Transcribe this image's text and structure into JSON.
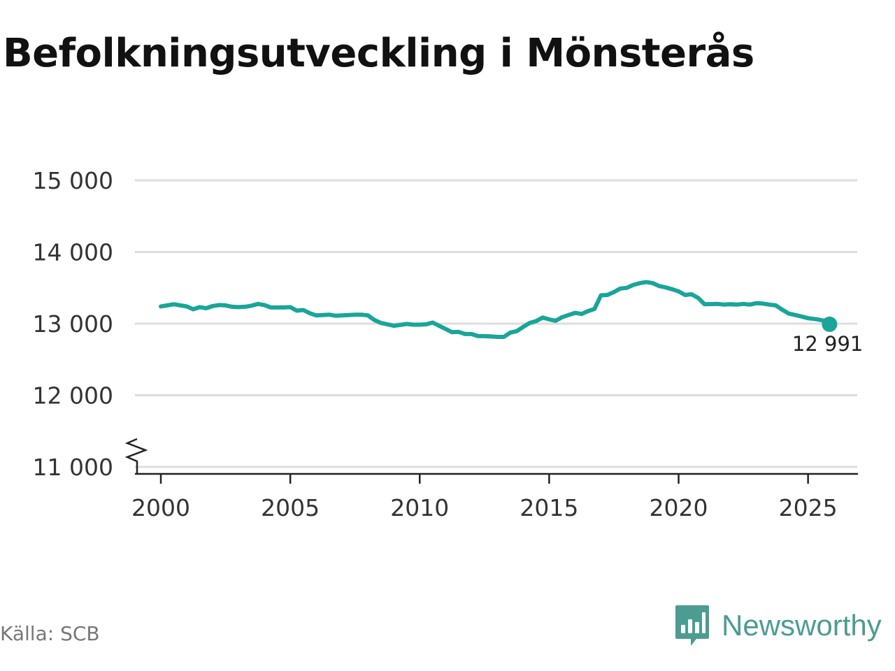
{
  "title": "Befolkningsutveckling i Mönsterås",
  "source": "Källa: SCB",
  "brand": {
    "name": "Newsworthy",
    "icon": "newsworthy-logo-icon",
    "color": "#4c9c93"
  },
  "colors": {
    "line": "#1aa599",
    "grid": "#dddddd",
    "axis": "#222222"
  },
  "chart_data": {
    "type": "line",
    "title": "Befolkningsutveckling i Mönsterås",
    "xlabel": "",
    "ylabel": "",
    "xlim": [
      1999.0,
      2026.9
    ],
    "ylim": [
      11000,
      15000
    ],
    "broken_axis": true,
    "grid": "horizontal",
    "x_ticks": [
      2000,
      2005,
      2010,
      2015,
      2020,
      2025
    ],
    "y_ticks": [
      {
        "value": 11000,
        "label": "11 000"
      },
      {
        "value": 12000,
        "label": "12 000"
      },
      {
        "value": 13000,
        "label": "13 000"
      },
      {
        "value": 14000,
        "label": "14 000"
      },
      {
        "value": 15000,
        "label": "15 000"
      }
    ],
    "end_label": "12 991",
    "series": [
      {
        "points": [
          [
            2000.0,
            13240
          ],
          [
            2000.5,
            13270
          ],
          [
            2001.0,
            13240
          ],
          [
            2001.25,
            13200
          ],
          [
            2001.5,
            13230
          ],
          [
            2001.75,
            13215
          ],
          [
            2002.0,
            13245
          ],
          [
            2002.25,
            13260
          ],
          [
            2002.5,
            13255
          ],
          [
            2002.75,
            13235
          ],
          [
            2003.0,
            13230
          ],
          [
            2003.25,
            13235
          ],
          [
            2003.5,
            13250
          ],
          [
            2003.75,
            13275
          ],
          [
            2004.0,
            13260
          ],
          [
            2004.25,
            13225
          ],
          [
            2004.5,
            13225
          ],
          [
            2004.75,
            13225
          ],
          [
            2005.0,
            13230
          ],
          [
            2005.25,
            13180
          ],
          [
            2005.5,
            13190
          ],
          [
            2005.75,
            13145
          ],
          [
            2006.0,
            13115
          ],
          [
            2006.5,
            13125
          ],
          [
            2006.75,
            13110
          ],
          [
            2007.0,
            13115
          ],
          [
            2007.5,
            13125
          ],
          [
            2007.75,
            13125
          ],
          [
            2008.0,
            13115
          ],
          [
            2008.25,
            13050
          ],
          [
            2008.5,
            13010
          ],
          [
            2009.0,
            12970
          ],
          [
            2009.5,
            12995
          ],
          [
            2009.75,
            12985
          ],
          [
            2010.0,
            12985
          ],
          [
            2010.25,
            12990
          ],
          [
            2010.5,
            13015
          ],
          [
            2010.75,
            12970
          ],
          [
            2011.0,
            12925
          ],
          [
            2011.25,
            12880
          ],
          [
            2011.5,
            12885
          ],
          [
            2011.75,
            12855
          ],
          [
            2012.0,
            12855
          ],
          [
            2012.25,
            12825
          ],
          [
            2012.5,
            12825
          ],
          [
            2012.75,
            12820
          ],
          [
            2013.0,
            12815
          ],
          [
            2013.25,
            12815
          ],
          [
            2013.5,
            12875
          ],
          [
            2013.75,
            12895
          ],
          [
            2014.0,
            12955
          ],
          [
            2014.25,
            13010
          ],
          [
            2014.5,
            13035
          ],
          [
            2014.75,
            13085
          ],
          [
            2015.0,
            13060
          ],
          [
            2015.25,
            13040
          ],
          [
            2015.5,
            13090
          ],
          [
            2015.75,
            13120
          ],
          [
            2016.0,
            13150
          ],
          [
            2016.25,
            13135
          ],
          [
            2016.5,
            13175
          ],
          [
            2016.75,
            13205
          ],
          [
            2017.0,
            13395
          ],
          [
            2017.25,
            13400
          ],
          [
            2017.5,
            13440
          ],
          [
            2017.75,
            13490
          ],
          [
            2018.0,
            13500
          ],
          [
            2018.25,
            13540
          ],
          [
            2018.5,
            13565
          ],
          [
            2018.75,
            13580
          ],
          [
            2019.0,
            13565
          ],
          [
            2019.25,
            13525
          ],
          [
            2019.5,
            13505
          ],
          [
            2019.75,
            13480
          ],
          [
            2020.0,
            13450
          ],
          [
            2020.25,
            13400
          ],
          [
            2020.5,
            13410
          ],
          [
            2020.75,
            13360
          ],
          [
            2021.0,
            13270
          ],
          [
            2021.5,
            13275
          ],
          [
            2021.75,
            13265
          ],
          [
            2022.0,
            13270
          ],
          [
            2022.25,
            13265
          ],
          [
            2022.5,
            13275
          ],
          [
            2022.75,
            13265
          ],
          [
            2023.0,
            13285
          ],
          [
            2023.25,
            13280
          ],
          [
            2023.5,
            13265
          ],
          [
            2023.75,
            13255
          ],
          [
            2024.0,
            13195
          ],
          [
            2024.25,
            13140
          ],
          [
            2024.5,
            13120
          ],
          [
            2024.75,
            13100
          ],
          [
            2025.0,
            13075
          ],
          [
            2025.25,
            13065
          ],
          [
            2025.5,
            13050
          ],
          [
            2025.75,
            13030
          ],
          [
            2025.83,
            12991
          ]
        ]
      }
    ]
  }
}
